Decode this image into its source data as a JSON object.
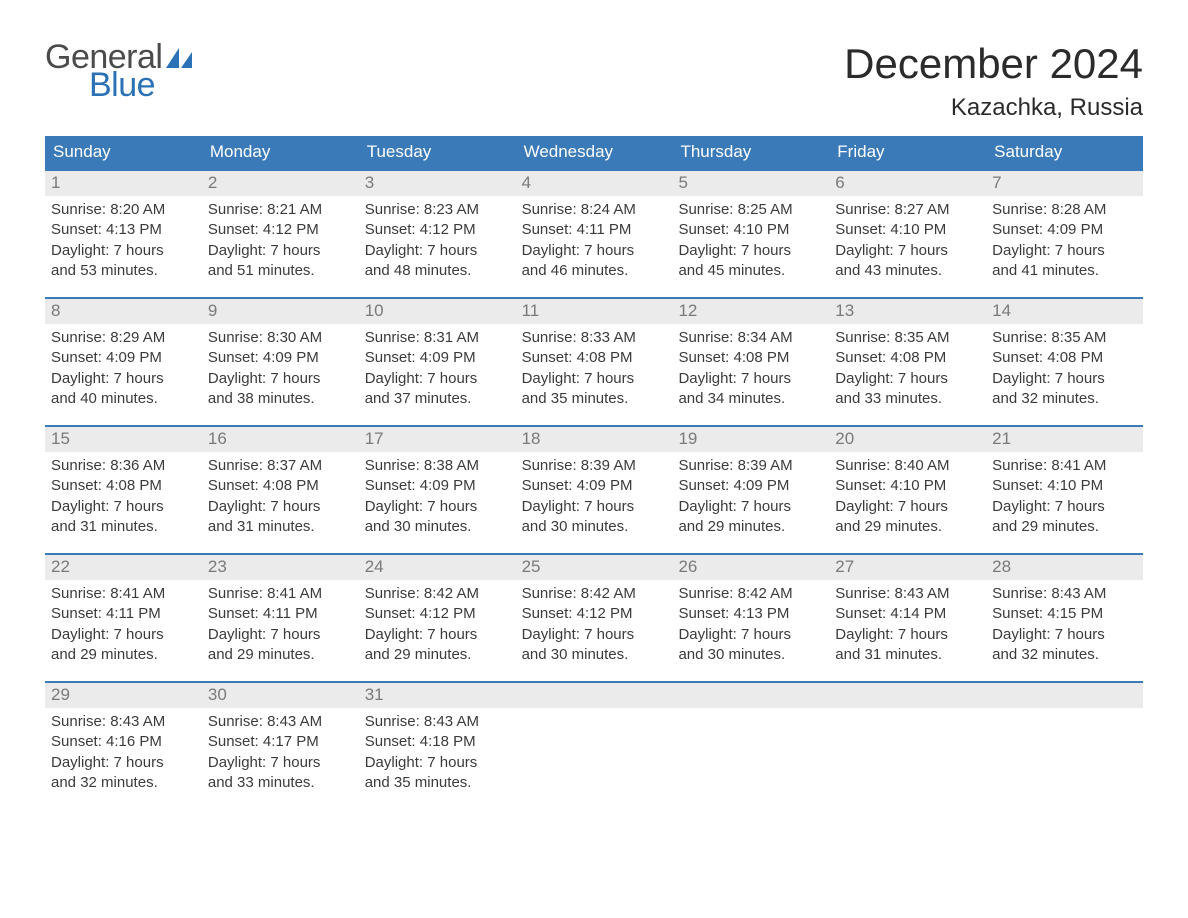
{
  "logo": {
    "text1": "General",
    "text2": "Blue",
    "sail_color": "#2a72b5",
    "text1_color": "#4b4b4b"
  },
  "title": "December 2024",
  "location": "Kazachka, Russia",
  "colors": {
    "header_bg": "#3a7ab8",
    "header_text": "#ffffff",
    "week_border": "#3a7ab8",
    "daynum_bg": "#ebebeb",
    "daynum_text": "#7a7a7a",
    "body_text": "#3b3b3b",
    "page_bg": "#ffffff"
  },
  "typography": {
    "month_title_fontsize": 42,
    "location_fontsize": 24,
    "weekday_fontsize": 17,
    "daynum_fontsize": 17,
    "body_fontsize": 15
  },
  "weekdays": [
    "Sunday",
    "Monday",
    "Tuesday",
    "Wednesday",
    "Thursday",
    "Friday",
    "Saturday"
  ],
  "labels": {
    "sunrise": "Sunrise:",
    "sunset": "Sunset:",
    "daylight": "Daylight:"
  },
  "weeks": [
    [
      {
        "n": "1",
        "sunrise": "8:20 AM",
        "sunset": "4:13 PM",
        "dl1": "7 hours",
        "dl2": "and 53 minutes."
      },
      {
        "n": "2",
        "sunrise": "8:21 AM",
        "sunset": "4:12 PM",
        "dl1": "7 hours",
        "dl2": "and 51 minutes."
      },
      {
        "n": "3",
        "sunrise": "8:23 AM",
        "sunset": "4:12 PM",
        "dl1": "7 hours",
        "dl2": "and 48 minutes."
      },
      {
        "n": "4",
        "sunrise": "8:24 AM",
        "sunset": "4:11 PM",
        "dl1": "7 hours",
        "dl2": "and 46 minutes."
      },
      {
        "n": "5",
        "sunrise": "8:25 AM",
        "sunset": "4:10 PM",
        "dl1": "7 hours",
        "dl2": "and 45 minutes."
      },
      {
        "n": "6",
        "sunrise": "8:27 AM",
        "sunset": "4:10 PM",
        "dl1": "7 hours",
        "dl2": "and 43 minutes."
      },
      {
        "n": "7",
        "sunrise": "8:28 AM",
        "sunset": "4:09 PM",
        "dl1": "7 hours",
        "dl2": "and 41 minutes."
      }
    ],
    [
      {
        "n": "8",
        "sunrise": "8:29 AM",
        "sunset": "4:09 PM",
        "dl1": "7 hours",
        "dl2": "and 40 minutes."
      },
      {
        "n": "9",
        "sunrise": "8:30 AM",
        "sunset": "4:09 PM",
        "dl1": "7 hours",
        "dl2": "and 38 minutes."
      },
      {
        "n": "10",
        "sunrise": "8:31 AM",
        "sunset": "4:09 PM",
        "dl1": "7 hours",
        "dl2": "and 37 minutes."
      },
      {
        "n": "11",
        "sunrise": "8:33 AM",
        "sunset": "4:08 PM",
        "dl1": "7 hours",
        "dl2": "and 35 minutes."
      },
      {
        "n": "12",
        "sunrise": "8:34 AM",
        "sunset": "4:08 PM",
        "dl1": "7 hours",
        "dl2": "and 34 minutes."
      },
      {
        "n": "13",
        "sunrise": "8:35 AM",
        "sunset": "4:08 PM",
        "dl1": "7 hours",
        "dl2": "and 33 minutes."
      },
      {
        "n": "14",
        "sunrise": "8:35 AM",
        "sunset": "4:08 PM",
        "dl1": "7 hours",
        "dl2": "and 32 minutes."
      }
    ],
    [
      {
        "n": "15",
        "sunrise": "8:36 AM",
        "sunset": "4:08 PM",
        "dl1": "7 hours",
        "dl2": "and 31 minutes."
      },
      {
        "n": "16",
        "sunrise": "8:37 AM",
        "sunset": "4:08 PM",
        "dl1": "7 hours",
        "dl2": "and 31 minutes."
      },
      {
        "n": "17",
        "sunrise": "8:38 AM",
        "sunset": "4:09 PM",
        "dl1": "7 hours",
        "dl2": "and 30 minutes."
      },
      {
        "n": "18",
        "sunrise": "8:39 AM",
        "sunset": "4:09 PM",
        "dl1": "7 hours",
        "dl2": "and 30 minutes."
      },
      {
        "n": "19",
        "sunrise": "8:39 AM",
        "sunset": "4:09 PM",
        "dl1": "7 hours",
        "dl2": "and 29 minutes."
      },
      {
        "n": "20",
        "sunrise": "8:40 AM",
        "sunset": "4:10 PM",
        "dl1": "7 hours",
        "dl2": "and 29 minutes."
      },
      {
        "n": "21",
        "sunrise": "8:41 AM",
        "sunset": "4:10 PM",
        "dl1": "7 hours",
        "dl2": "and 29 minutes."
      }
    ],
    [
      {
        "n": "22",
        "sunrise": "8:41 AM",
        "sunset": "4:11 PM",
        "dl1": "7 hours",
        "dl2": "and 29 minutes."
      },
      {
        "n": "23",
        "sunrise": "8:41 AM",
        "sunset": "4:11 PM",
        "dl1": "7 hours",
        "dl2": "and 29 minutes."
      },
      {
        "n": "24",
        "sunrise": "8:42 AM",
        "sunset": "4:12 PM",
        "dl1": "7 hours",
        "dl2": "and 29 minutes."
      },
      {
        "n": "25",
        "sunrise": "8:42 AM",
        "sunset": "4:12 PM",
        "dl1": "7 hours",
        "dl2": "and 30 minutes."
      },
      {
        "n": "26",
        "sunrise": "8:42 AM",
        "sunset": "4:13 PM",
        "dl1": "7 hours",
        "dl2": "and 30 minutes."
      },
      {
        "n": "27",
        "sunrise": "8:43 AM",
        "sunset": "4:14 PM",
        "dl1": "7 hours",
        "dl2": "and 31 minutes."
      },
      {
        "n": "28",
        "sunrise": "8:43 AM",
        "sunset": "4:15 PM",
        "dl1": "7 hours",
        "dl2": "and 32 minutes."
      }
    ],
    [
      {
        "n": "29",
        "sunrise": "8:43 AM",
        "sunset": "4:16 PM",
        "dl1": "7 hours",
        "dl2": "and 32 minutes."
      },
      {
        "n": "30",
        "sunrise": "8:43 AM",
        "sunset": "4:17 PM",
        "dl1": "7 hours",
        "dl2": "and 33 minutes."
      },
      {
        "n": "31",
        "sunrise": "8:43 AM",
        "sunset": "4:18 PM",
        "dl1": "7 hours",
        "dl2": "and 35 minutes."
      },
      {
        "empty": true
      },
      {
        "empty": true
      },
      {
        "empty": true
      },
      {
        "empty": true
      }
    ]
  ]
}
